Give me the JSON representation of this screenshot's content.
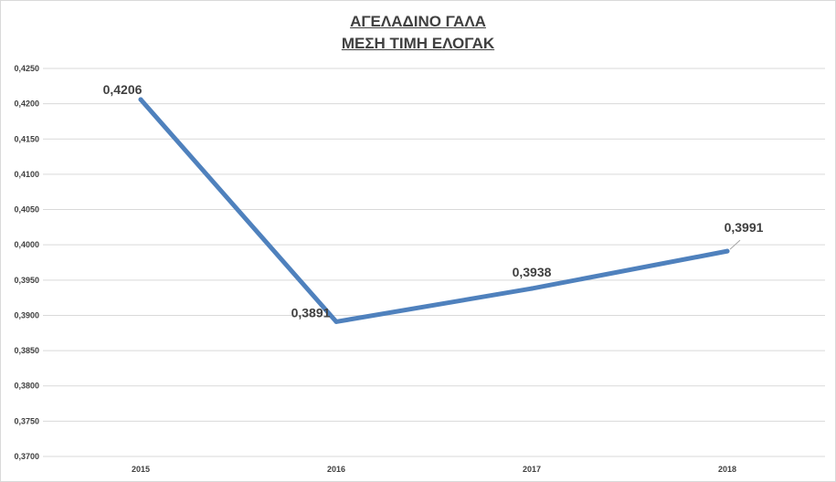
{
  "chart_data": {
    "type": "line",
    "title": "ΑΓΕΛΑΔΙΝΟ ΓΑΛΑ",
    "subtitle": "ΜΕΣΗ ΤΙΜΗ ΕΛΟΓΑΚ",
    "categories": [
      "2015",
      "2016",
      "2017",
      "2018"
    ],
    "series": [
      {
        "values": [
          0.4206,
          0.3891,
          0.3938,
          0.3991
        ],
        "labels": [
          "0,4206",
          "0,3891",
          "0,3938",
          "0,3991"
        ],
        "color": "#4f81bd"
      }
    ],
    "ylim": [
      0.37,
      0.425
    ],
    "y_ticks": [
      0.37,
      0.375,
      0.38,
      0.385,
      0.39,
      0.395,
      0.4,
      0.405,
      0.41,
      0.415,
      0.42,
      0.425
    ],
    "y_tick_labels": [
      "0,3700",
      "0,3750",
      "0,3800",
      "0,3850",
      "0,3900",
      "0,3950",
      "0,4000",
      "0,4050",
      "0,4100",
      "0,4150",
      "0,4200",
      "0,4250"
    ],
    "grid": true,
    "legend": "none",
    "grid_color": "#d9d9d9",
    "text_color": "#404040"
  }
}
